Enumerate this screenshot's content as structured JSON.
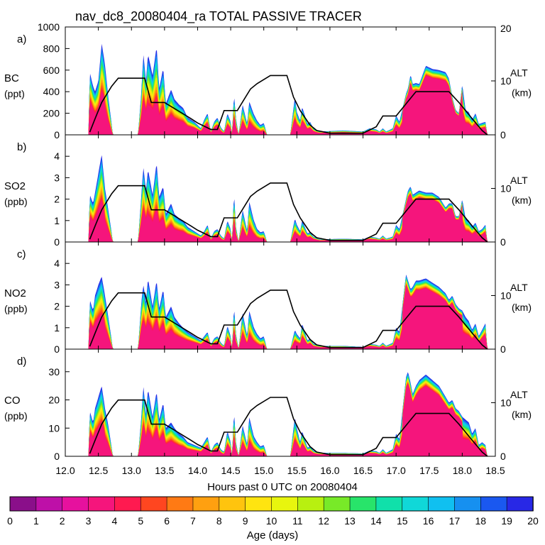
{
  "chart_data": {
    "type": "area",
    "title": "nav_dc8_20080404_ra TOTAL PASSIVE TRACER",
    "xlabel": "Hours past 0 UTC on 20080404",
    "xlim": [
      12.0,
      18.5
    ],
    "x_ticks": [
      "12.0",
      "12.5",
      "13.0",
      "13.5",
      "14.0",
      "14.5",
      "15.0",
      "15.5",
      "16.0",
      "16.5",
      "17.0",
      "17.5",
      "18.0",
      "18.5"
    ],
    "right_axis": {
      "label_line1": "ALT",
      "label_line2": "(km)",
      "ylim": [
        0,
        20
      ],
      "ticks": [
        "0",
        "10",
        "20"
      ]
    },
    "altitude_km": {
      "x": [
        12.37,
        12.45,
        12.55,
        12.7,
        12.8,
        13.2,
        13.3,
        13.5,
        13.7,
        13.9,
        14.0,
        14.2,
        14.3,
        14.4,
        14.6,
        14.7,
        14.8,
        14.9,
        15.1,
        15.2,
        15.35,
        15.45,
        15.55,
        15.7,
        15.8,
        16.0,
        16.5,
        16.7,
        16.8,
        17.0,
        17.2,
        17.3,
        17.5,
        17.8,
        17.95,
        18.15,
        18.3,
        18.38
      ],
      "y": [
        0.5,
        3,
        6,
        9,
        10.5,
        10.5,
        6,
        6,
        4.5,
        3,
        2.2,
        1,
        1,
        4.5,
        4.5,
        6.5,
        8.5,
        9.5,
        11,
        11,
        11,
        7,
        4.5,
        1.8,
        0.8,
        0.3,
        0.3,
        1.5,
        3.5,
        3.5,
        6.5,
        8,
        8,
        8,
        6,
        3,
        0.8,
        0
      ]
    },
    "panels": [
      {
        "letter": "a)",
        "species": "BC",
        "unit": "(ppt)",
        "ylim": [
          0,
          1000
        ],
        "ytick_labels": [
          "0",
          "200",
          "400",
          "600",
          "800",
          "1000"
        ],
        "ytick_values": [
          0,
          200,
          400,
          600,
          800,
          1000
        ],
        "envelope": {
          "x": [
            12.35,
            12.37,
            12.42,
            12.45,
            12.5,
            12.55,
            12.6,
            12.65,
            12.72,
            12.85,
            13.1,
            13.15,
            13.18,
            13.22,
            13.25,
            13.32,
            13.38,
            13.42,
            13.48,
            13.52,
            13.6,
            13.65,
            13.72,
            13.78,
            13.85,
            13.95,
            14.0,
            14.05,
            14.1,
            14.15,
            14.2,
            14.25,
            14.3,
            14.35,
            14.4,
            14.45,
            14.5,
            14.52,
            14.55,
            14.58,
            14.62,
            14.68,
            14.75,
            14.78,
            14.85,
            14.9,
            14.95,
            15.0,
            15.05,
            15.1,
            15.4,
            15.47,
            15.5,
            15.55,
            15.58,
            15.62,
            15.66,
            15.7,
            15.75,
            15.8,
            15.85,
            16.2,
            16.5,
            16.6,
            16.7,
            16.75,
            16.8,
            16.85,
            16.95,
            17.0,
            17.05,
            17.15,
            17.18,
            17.22,
            17.25,
            17.3,
            17.35,
            17.45,
            17.55,
            17.65,
            17.75,
            17.8,
            17.85,
            17.9,
            17.95,
            18.0,
            18.05,
            18.1,
            18.15,
            18.2,
            18.25,
            18.3,
            18.35,
            18.38
          ],
          "y": [
            0,
            580,
            450,
            400,
            500,
            850,
            650,
            350,
            0,
            0,
            0,
            400,
            750,
            500,
            750,
            550,
            820,
            430,
            620,
            290,
            420,
            330,
            280,
            250,
            160,
            120,
            90,
            60,
            140,
            200,
            30,
            120,
            160,
            70,
            30,
            200,
            120,
            0,
            380,
            150,
            0,
            280,
            100,
            310,
            190,
            130,
            90,
            110,
            0,
            0,
            0,
            350,
            210,
            130,
            260,
            180,
            100,
            120,
            60,
            40,
            30,
            40,
            30,
            60,
            50,
            30,
            60,
            30,
            60,
            180,
            120,
            380,
            430,
            560,
            470,
            480,
            470,
            640,
            610,
            600,
            580,
            520,
            350,
            230,
            200,
            470,
            230,
            210,
            140,
            200,
            100,
            110,
            120,
            0
          ]
        }
      },
      {
        "letter": "b)",
        "species": "SO2",
        "unit": "(ppb)",
        "ylim": [
          0,
          5
        ],
        "ytick_labels": [
          "0",
          "1",
          "2",
          "3",
          "4"
        ],
        "ytick_values": [
          0,
          1,
          2,
          3,
          4
        ],
        "envelope": {
          "x": [
            12.35,
            12.37,
            12.42,
            12.45,
            12.5,
            12.55,
            12.6,
            12.65,
            12.72,
            12.85,
            13.1,
            13.15,
            13.18,
            13.22,
            13.25,
            13.32,
            13.38,
            13.42,
            13.48,
            13.52,
            13.6,
            13.65,
            13.72,
            13.78,
            13.85,
            13.95,
            14.0,
            14.05,
            14.1,
            14.15,
            14.2,
            14.25,
            14.3,
            14.35,
            14.4,
            14.45,
            14.5,
            14.52,
            14.55,
            14.58,
            14.62,
            14.68,
            14.75,
            14.78,
            14.85,
            14.9,
            14.95,
            15.0,
            15.05,
            15.1,
            15.4,
            15.47,
            15.5,
            15.55,
            15.58,
            15.62,
            15.66,
            15.7,
            15.75,
            15.8,
            15.85,
            16.2,
            16.5,
            16.6,
            16.7,
            16.75,
            16.8,
            16.85,
            16.95,
            17.0,
            17.05,
            17.15,
            17.18,
            17.22,
            17.25,
            17.3,
            17.35,
            17.45,
            17.55,
            17.65,
            17.75,
            17.8,
            17.85,
            17.9,
            17.95,
            18.0,
            18.05,
            18.1,
            18.15,
            18.2,
            18.25,
            18.3,
            18.35,
            18.38
          ],
          "y": [
            0,
            2.2,
            1.8,
            2.3,
            3.2,
            4.1,
            2.5,
            1.5,
            0,
            0,
            0,
            2.2,
            3.5,
            2.4,
            3.4,
            2.2,
            3.7,
            2.1,
            2.6,
            1.3,
            1.8,
            1.3,
            1.1,
            1.0,
            0.7,
            0.5,
            0.4,
            0.3,
            0.5,
            0.8,
            0.15,
            0.5,
            0.6,
            0.3,
            0.15,
            1.0,
            0.6,
            0,
            2.3,
            0.7,
            0,
            1.5,
            0.5,
            1.9,
            1.0,
            0.6,
            0.45,
            0.5,
            0,
            0,
            0,
            1.1,
            0.8,
            0.5,
            1.0,
            0.7,
            0.4,
            0.45,
            0.25,
            0.18,
            0.12,
            0.15,
            0.12,
            0.25,
            0.2,
            0.15,
            0.3,
            0.15,
            0.25,
            0.8,
            0.6,
            2.0,
            2.4,
            2.6,
            2.2,
            2.3,
            2.4,
            2.3,
            2.3,
            2.1,
            1.6,
            1.8,
            1.8,
            1.2,
            1.2,
            2.0,
            1.1,
            1.0,
            0.7,
            0.9,
            0.5,
            0.6,
            0.8,
            0
          ]
        }
      },
      {
        "letter": "c)",
        "species": "NO2",
        "unit": "(ppb)",
        "ylim": [
          0,
          5
        ],
        "ytick_labels": [
          "0",
          "1",
          "2",
          "3",
          "4"
        ],
        "ytick_values": [
          0,
          1,
          2,
          3,
          4
        ],
        "envelope": {
          "x": [
            12.35,
            12.37,
            12.42,
            12.45,
            12.5,
            12.55,
            12.6,
            12.65,
            12.72,
            12.85,
            13.1,
            13.15,
            13.18,
            13.22,
            13.25,
            13.32,
            13.38,
            13.42,
            13.48,
            13.52,
            13.6,
            13.65,
            13.72,
            13.78,
            13.85,
            13.95,
            14.0,
            14.05,
            14.1,
            14.15,
            14.2,
            14.25,
            14.3,
            14.35,
            14.4,
            14.45,
            14.5,
            14.52,
            14.55,
            14.58,
            14.62,
            14.68,
            14.75,
            14.78,
            14.85,
            14.9,
            14.95,
            15.0,
            15.05,
            15.1,
            15.4,
            15.47,
            15.5,
            15.55,
            15.58,
            15.62,
            15.66,
            15.7,
            15.75,
            15.8,
            15.85,
            16.2,
            16.5,
            16.6,
            16.7,
            16.75,
            16.8,
            16.85,
            16.95,
            17.0,
            17.05,
            17.15,
            17.18,
            17.22,
            17.25,
            17.3,
            17.35,
            17.45,
            17.55,
            17.65,
            17.75,
            17.8,
            17.85,
            17.9,
            17.95,
            18.0,
            18.05,
            18.1,
            18.15,
            18.2,
            18.25,
            18.3,
            18.35,
            18.38
          ],
          "y": [
            0,
            2.3,
            1.8,
            2.5,
            3.0,
            3.4,
            2.5,
            1.5,
            0,
            0,
            0,
            2.2,
            3.0,
            2.2,
            3.3,
            2.0,
            3.2,
            1.9,
            2.8,
            1.5,
            2.0,
            1.5,
            1.2,
            1.0,
            0.8,
            0.6,
            0.5,
            0.4,
            0.6,
            0.8,
            0.2,
            0.5,
            0.6,
            0.3,
            0.15,
            1.1,
            0.6,
            0,
            2.0,
            0.7,
            0,
            1.7,
            0.6,
            1.8,
            1.0,
            0.7,
            0.5,
            0.6,
            0,
            0,
            0,
            0.9,
            0.7,
            0.5,
            1.2,
            0.8,
            0.4,
            0.5,
            0.25,
            0.2,
            0.15,
            0.15,
            0.1,
            0.25,
            0.2,
            0.15,
            0.3,
            0.15,
            0.3,
            1.0,
            0.8,
            3.5,
            3.2,
            2.8,
            2.9,
            3.2,
            3.2,
            3.3,
            3.1,
            2.9,
            2.6,
            2.3,
            2.5,
            2.1,
            1.9,
            1.8,
            1.5,
            1.3,
            0.9,
            1.2,
            0.6,
            0.9,
            1.2,
            0
          ]
        }
      },
      {
        "letter": "d)",
        "species": "CO",
        "unit": "(ppb)",
        "ylim": [
          0,
          38
        ],
        "ytick_labels": [
          "0",
          "10",
          "20",
          "30"
        ],
        "ytick_values": [
          0,
          10,
          20,
          30
        ],
        "envelope": {
          "x": [
            12.35,
            12.37,
            12.42,
            12.45,
            12.5,
            12.55,
            12.6,
            12.65,
            12.72,
            12.85,
            13.1,
            13.15,
            13.18,
            13.22,
            13.25,
            13.32,
            13.38,
            13.42,
            13.48,
            13.52,
            13.6,
            13.65,
            13.72,
            13.78,
            13.85,
            13.95,
            14.0,
            14.05,
            14.1,
            14.15,
            14.2,
            14.25,
            14.3,
            14.35,
            14.4,
            14.45,
            14.5,
            14.52,
            14.55,
            14.58,
            14.62,
            14.68,
            14.75,
            14.78,
            14.85,
            14.9,
            14.95,
            15.0,
            15.05,
            15.1,
            15.4,
            15.47,
            15.5,
            15.55,
            15.58,
            15.62,
            15.66,
            15.7,
            15.75,
            15.8,
            15.85,
            16.2,
            16.5,
            16.6,
            16.7,
            16.75,
            16.8,
            16.85,
            16.95,
            17.0,
            17.05,
            17.15,
            17.18,
            17.22,
            17.25,
            17.3,
            17.35,
            17.45,
            17.55,
            17.65,
            17.75,
            17.8,
            17.85,
            17.9,
            17.95,
            18.0,
            18.05,
            18.1,
            18.15,
            18.2,
            18.25,
            18.3,
            18.35,
            18.38
          ],
          "y": [
            0,
            16,
            12,
            17,
            21,
            25,
            17,
            11,
            0,
            0,
            0,
            14,
            25,
            15,
            24,
            14,
            23,
            13,
            19,
            10,
            12,
            10,
            8,
            7,
            5,
            4,
            3.5,
            3,
            5,
            7,
            1.5,
            4,
            5,
            2.5,
            1.5,
            9,
            5,
            0,
            16,
            5,
            0,
            11,
            4,
            14,
            7,
            5,
            3.5,
            4,
            0,
            0,
            0,
            14,
            10,
            5,
            9,
            6,
            3,
            3.5,
            2,
            1.5,
            1.2,
            1.2,
            1,
            2,
            1.8,
            1.2,
            2.5,
            1.2,
            2.5,
            8,
            6,
            28,
            30,
            26,
            22,
            25,
            27,
            29,
            27,
            25,
            21,
            19,
            20,
            17,
            16,
            14,
            13,
            12,
            8,
            10,
            4,
            5,
            4,
            0
          ]
        }
      }
    ],
    "colorbar": {
      "label": "Age (days)",
      "tick_labels": [
        "0",
        "1",
        "2",
        "3",
        "4",
        "5",
        "6",
        "7",
        "8",
        "9",
        "10",
        "11",
        "12",
        "13",
        "14",
        "15",
        "16",
        "17",
        "18",
        "19",
        "20"
      ],
      "colors": [
        "#8a0f8a",
        "#be10a8",
        "#e6119e",
        "#f5157c",
        "#ff1a50",
        "#ff4620",
        "#ff7a14",
        "#ffa010",
        "#ffc40e",
        "#ffe410",
        "#e8f50e",
        "#b8f010",
        "#78ea28",
        "#28e46a",
        "#10e0aa",
        "#10d8d8",
        "#10c0f0",
        "#1690f0",
        "#1a58f0",
        "#2828e6"
      ]
    }
  }
}
